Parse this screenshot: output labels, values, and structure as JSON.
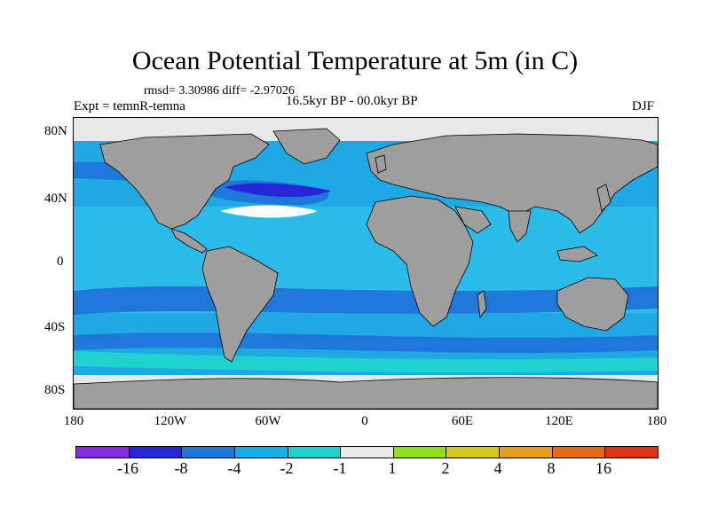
{
  "title": "Ocean Potential Temperature at 5m (in C)",
  "stats": "rmsd= 3.30986 diff= -2.97026",
  "expt": "Expt = temnR-temna",
  "period": "16.5kyr BP - 00.0kyr BP",
  "season": "DJF",
  "map": {
    "y_ticks": [
      "80N",
      "40N",
      "0",
      "40S",
      "80S"
    ],
    "x_ticks": [
      "180",
      "120W",
      "60W",
      "0",
      "60E",
      "120E",
      "180"
    ],
    "land_color": "#9e9e9e",
    "ice_color": "#e8e8e8"
  },
  "colorbar": {
    "colors": [
      "#8a2be2",
      "#2626d9",
      "#1f78d9",
      "#19aee6",
      "#1ed2d2",
      "#e8e8e8",
      "#8ee01e",
      "#d6c81e",
      "#e6a01e",
      "#e66a14",
      "#e03214"
    ],
    "labels": [
      "-16",
      "-8",
      "-4",
      "-2",
      "-1",
      "1",
      "2",
      "4",
      "8",
      "16"
    ]
  }
}
